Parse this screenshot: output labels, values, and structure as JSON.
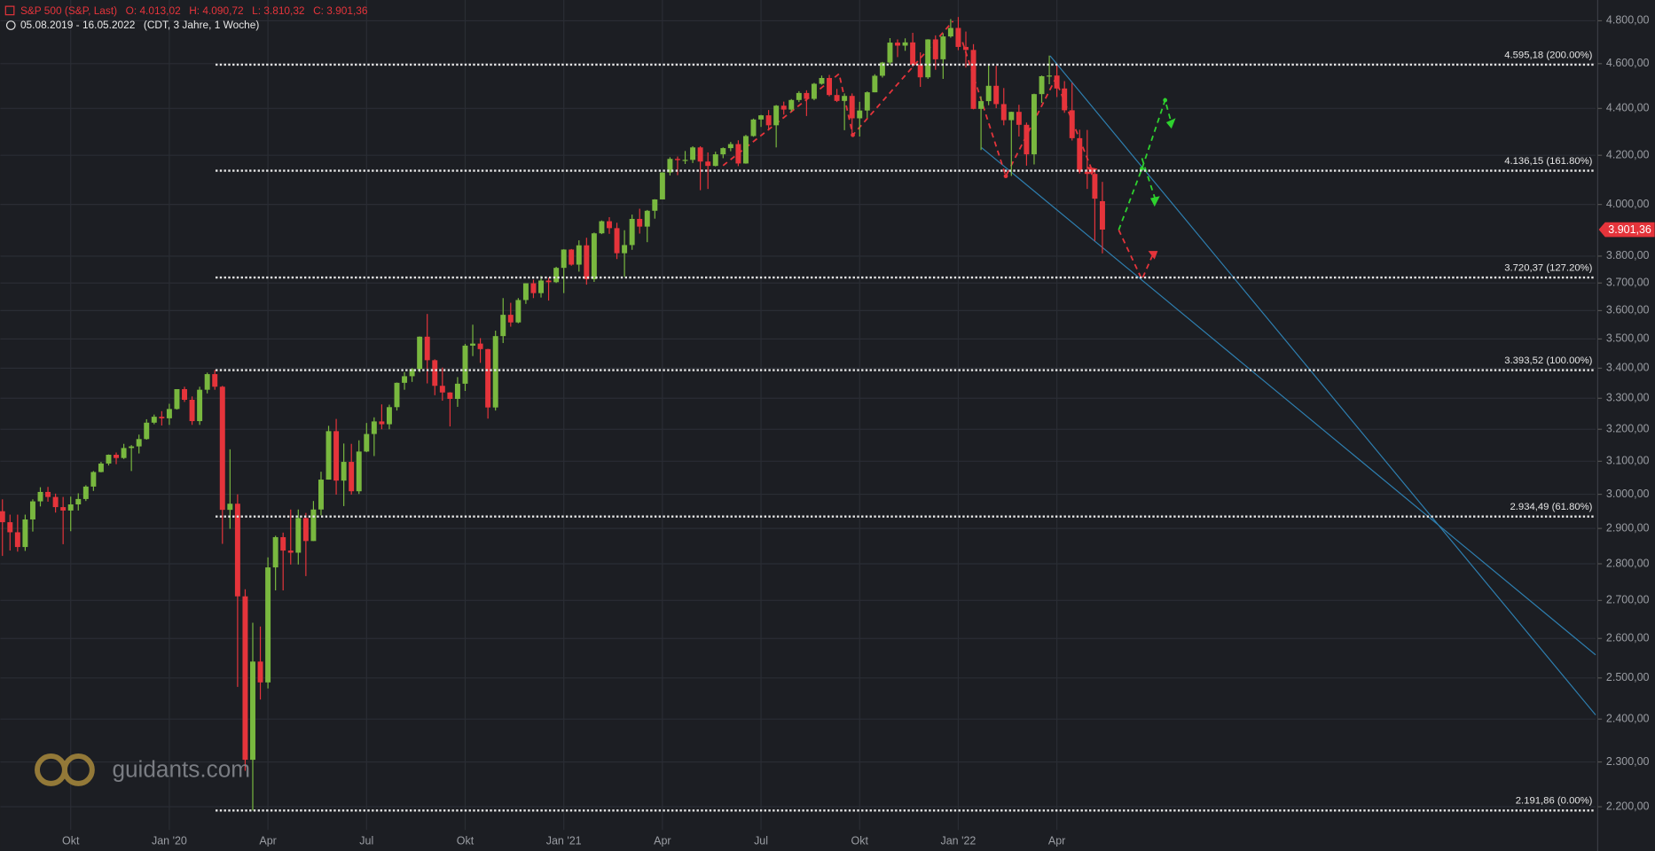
{
  "chart_data": {
    "type": "candlestick",
    "title": "S&P 500 (S&P, Last)",
    "ohlc_labels": [
      "O: 4.013,02",
      "H: 4.090,72",
      "L: 3.810,32",
      "C: 3.901,36"
    ],
    "subtitle": "05.08.2019 - 16.05.2022",
    "subtitle_note": "(CDT, 3 Jahre, 1 Woche)",
    "watermark": "guidants.com",
    "log_scale": true,
    "grid": true,
    "up_color": "#79b83f",
    "down_color": "#e5343b",
    "open": [
      2950,
      2918,
      2889,
      2847,
      2926,
      2979,
      3007,
      2992,
      2962,
      2952,
      2970,
      2986,
      3023,
      3067,
      3093,
      3120,
      3110,
      3141,
      3146,
      3169,
      3221,
      3240,
      3235,
      3265,
      3330,
      3295,
      3226,
      3328,
      3380,
      3338,
      2954,
      2972,
      2711,
      2305,
      2541,
      2489,
      2790,
      2875,
      2837,
      2831,
      2930,
      2864,
      2955,
      3044,
      3194,
      3041,
      3098,
      3009,
      3130,
      3185,
      3225,
      3216,
      3271,
      3351,
      3373,
      3397,
      3508,
      3427,
      3341,
      3319,
      3298,
      3348,
      3477,
      3484,
      3465,
      3270,
      3510,
      3585,
      3558,
      3638,
      3699,
      3663,
      3709,
      3703,
      3756,
      3825,
      3768,
      3841,
      3714,
      3887,
      3934,
      3907,
      3811,
      3842,
      3943,
      3913,
      3975,
      4020,
      4129,
      4185,
      4180,
      4181,
      4233,
      4174,
      4156,
      4204,
      4230,
      4247,
      4166,
      4281,
      4352,
      4370,
      4327,
      4412,
      4395,
      4437,
      4468,
      4442,
      4509,
      4535,
      4459,
      4433,
      4455,
      4357,
      4391,
      4471,
      4545,
      4605,
      4697,
      4683,
      4698,
      4595,
      4538,
      4712,
      4620,
      4726,
      4766,
      4677,
      4663,
      4398,
      4432,
      4500,
      4419,
      4349,
      4385,
      4329,
      4204,
      4463,
      4543,
      4546,
      4488,
      4392,
      4272,
      4132,
      4123,
      4013.02
    ],
    "high": [
      2985,
      2940,
      2940,
      2940,
      2985,
      3021,
      3022,
      3002,
      2992,
      2993,
      3003,
      3027,
      3070,
      3098,
      3121,
      3127,
      3154,
      3150,
      3183,
      3232,
      3247,
      3258,
      3282,
      3330,
      3338,
      3306,
      3338,
      3385,
      3394,
      3341,
      3137,
      3000,
      2730,
      2641,
      2631,
      2818,
      2879,
      2888,
      2955,
      2955,
      2945,
      2980,
      3068,
      3211,
      3233,
      3155,
      3154,
      3165,
      3220,
      3238,
      3280,
      3279,
      3352,
      3387,
      3400,
      3509,
      3588,
      3430,
      3402,
      3320,
      3370,
      3483,
      3550,
      3503,
      3466,
      3529,
      3645,
      3628,
      3645,
      3699,
      3712,
      3726,
      3720,
      3760,
      3826,
      3827,
      3860,
      3870,
      3890,
      3937,
      3950,
      3928,
      3899,
      3960,
      3983,
      3978,
      4021,
      4130,
      4192,
      4195,
      4218,
      4238,
      4238,
      4212,
      4215,
      4233,
      4256,
      4263,
      4286,
      4356,
      4372,
      4393,
      4415,
      4430,
      4441,
      4476,
      4480,
      4513,
      4546,
      4549,
      4486,
      4466,
      4466,
      4429,
      4475,
      4552,
      4608,
      4718,
      4712,
      4717,
      4743,
      4652,
      4713,
      4731,
      4740,
      4808,
      4818,
      4749,
      4690,
      4453,
      4595,
      4590,
      4490,
      4386,
      4416,
      4339,
      4465,
      4546,
      4637,
      4594,
      4521,
      4513,
      4308,
      4307,
      4140,
      4090.72
    ],
    "low": [
      2822,
      2837,
      2834,
      2836,
      2891,
      2964,
      2978,
      2946,
      2855,
      2892,
      2952,
      2980,
      3010,
      3066,
      3087,
      3091,
      3107,
      3070,
      3124,
      3167,
      3216,
      3212,
      3214,
      3263,
      3288,
      3214,
      3214,
      3316,
      3328,
      2856,
      2899,
      2478,
      2280,
      2192,
      2447,
      2474,
      2727,
      2727,
      2798,
      2798,
      2766,
      2864,
      2938,
      3044,
      2999,
      2965,
      2999,
      3001,
      3128,
      3116,
      3200,
      3200,
      3260,
      3328,
      3354,
      3386,
      3349,
      3310,
      3292,
      3209,
      3272,
      3324,
      3441,
      3418,
      3234,
      3260,
      3486,
      3543,
      3555,
      3624,
      3645,
      3647,
      3636,
      3700,
      3663,
      3764,
      3742,
      3694,
      3704,
      3884,
      3885,
      3789,
      3723,
      3824,
      3886,
      3853,
      3944,
      4020,
      4117,
      4118,
      4164,
      4168,
      4057,
      4062,
      4154,
      4188,
      4217,
      4155,
      4165,
      4278,
      4320,
      4311,
      4233,
      4373,
      4386,
      4428,
      4367,
      4436,
      4505,
      4453,
      4428,
      4306,
      4288,
      4279,
      4359,
      4471,
      4537,
      4595,
      4630,
      4659,
      4585,
      4495,
      4531,
      4572,
      4531,
      4720,
      4662,
      4582,
      4396,
      4222,
      4414,
      4401,
      4327,
      4115,
      4279,
      4157,
      4162,
      4424,
      4507,
      4450,
      4381,
      4262,
      4125,
      4062,
      3858,
      3810.32
    ],
    "close": [
      2918,
      2889,
      2847,
      2926,
      2979,
      3007,
      2992,
      2962,
      2952,
      2970,
      2986,
      3023,
      3067,
      3093,
      3120,
      3110,
      3141,
      3146,
      3169,
      3221,
      3240,
      3235,
      3265,
      3330,
      3295,
      3226,
      3328,
      3380,
      3338,
      2954,
      2972,
      2711,
      2305,
      2541,
      2489,
      2790,
      2875,
      2837,
      2831,
      2930,
      2864,
      2955,
      3044,
      3194,
      3041,
      3098,
      3009,
      3130,
      3185,
      3225,
      3216,
      3271,
      3351,
      3373,
      3397,
      3508,
      3427,
      3341,
      3319,
      3298,
      3348,
      3477,
      3484,
      3465,
      3270,
      3510,
      3585,
      3558,
      3638,
      3699,
      3663,
      3709,
      3703,
      3756,
      3825,
      3768,
      3841,
      3714,
      3887,
      3934,
      3907,
      3811,
      3842,
      3943,
      3913,
      3975,
      4020,
      4129,
      4185,
      4180,
      4181,
      4233,
      4174,
      4156,
      4204,
      4230,
      4247,
      4166,
      4281,
      4352,
      4370,
      4327,
      4412,
      4395,
      4437,
      4468,
      4442,
      4509,
      4535,
      4459,
      4433,
      4455,
      4357,
      4391,
      4471,
      4545,
      4605,
      4697,
      4683,
      4698,
      4595,
      4538,
      4712,
      4620,
      4726,
      4766,
      4677,
      4663,
      4398,
      4432,
      4500,
      4419,
      4349,
      4385,
      4329,
      4204,
      4463,
      4543,
      4546,
      4488,
      4392,
      4272,
      4132,
      4123,
      4023,
      3901.36
    ],
    "ylim": [
      2150,
      4900
    ],
    "yticks": [
      {
        "value": 2200,
        "label": "2.200,00"
      },
      {
        "value": 2300,
        "label": "2.300,00"
      },
      {
        "value": 2400,
        "label": "2.400,00"
      },
      {
        "value": 2500,
        "label": "2.500,00"
      },
      {
        "value": 2600,
        "label": "2.600,00"
      },
      {
        "value": 2700,
        "label": "2.700,00"
      },
      {
        "value": 2800,
        "label": "2.800,00"
      },
      {
        "value": 2900,
        "label": "2.900,00"
      },
      {
        "value": 3000,
        "label": "3.000,00"
      },
      {
        "value": 3100,
        "label": "3.100,00"
      },
      {
        "value": 3200,
        "label": "3.200,00"
      },
      {
        "value": 3300,
        "label": "3.300,00"
      },
      {
        "value": 3400,
        "label": "3.400,00"
      },
      {
        "value": 3500,
        "label": "3.500,00"
      },
      {
        "value": 3600,
        "label": "3.600,00"
      },
      {
        "value": 3700,
        "label": "3.700,00"
      },
      {
        "value": 3800,
        "label": "3.800,00"
      },
      {
        "value": 4000,
        "label": "4.000,00"
      },
      {
        "value": 4200,
        "label": "4.200,00"
      },
      {
        "value": 4400,
        "label": "4.400,00"
      },
      {
        "value": 4600,
        "label": "4.600,00"
      },
      {
        "value": 4800,
        "label": "4.800,00"
      }
    ],
    "xticks": [
      {
        "value": 9,
        "label": "Okt"
      },
      {
        "value": 22,
        "label": "Jan '20"
      },
      {
        "value": 35,
        "label": "Apr"
      },
      {
        "value": 48,
        "label": "Jul"
      },
      {
        "value": 61,
        "label": "Okt"
      },
      {
        "value": 74,
        "label": "Jan '21"
      },
      {
        "value": 87,
        "label": "Apr"
      },
      {
        "value": 100,
        "label": "Jul"
      },
      {
        "value": 113,
        "label": "Okt"
      },
      {
        "value": 126,
        "label": "Jan '22"
      },
      {
        "value": 139,
        "label": "Apr"
      }
    ],
    "levels": [
      {
        "value": 4595.18,
        "label": "4.595,18 (200.00%)"
      },
      {
        "value": 4136.15,
        "label": "4.136,15 (161.80%)"
      },
      {
        "value": 3720.37,
        "label": "3.720,37 (127.20%)"
      },
      {
        "value": 3393.52,
        "label": "3.393,52 (100.00%)"
      },
      {
        "value": 2934.49,
        "label": "2.934,49 (61.80%)"
      },
      {
        "value": 2191.86,
        "label": "2.191,86 (0.00%)"
      }
    ],
    "last_price": {
      "value": 3901.36,
      "label": "3.901,36"
    }
  }
}
